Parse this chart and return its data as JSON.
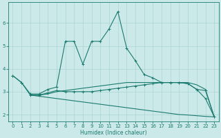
{
  "xlabel": "Humidex (Indice chaleur)",
  "bg_color": "#cce9e9",
  "grid_color": "#aad4d4",
  "line_color": "#1a7a6e",
  "xlim": [
    -0.5,
    23.5
  ],
  "ylim": [
    1.7,
    6.9
  ],
  "xticks": [
    0,
    1,
    2,
    3,
    4,
    5,
    6,
    7,
    8,
    9,
    10,
    11,
    12,
    13,
    14,
    15,
    16,
    17,
    18,
    19,
    20,
    21,
    22,
    23
  ],
  "yticks": [
    2,
    3,
    4,
    5,
    6
  ],
  "series": [
    {
      "x": [
        0,
        1,
        2,
        3,
        4,
        5,
        6,
        7,
        8,
        9,
        10,
        11,
        12,
        13,
        14,
        15,
        16,
        17,
        18,
        19,
        20,
        21,
        22,
        23
      ],
      "y": [
        3.7,
        3.4,
        2.9,
        2.9,
        3.1,
        3.2,
        5.2,
        5.2,
        4.2,
        5.2,
        5.2,
        5.75,
        6.5,
        4.9,
        4.35,
        3.75,
        3.6,
        3.4,
        3.4,
        3.4,
        3.35,
        3.1,
        2.7,
        1.9
      ],
      "marker": "+"
    },
    {
      "x": [
        0,
        1,
        2,
        3,
        4,
        5,
        6,
        7,
        8,
        9,
        10,
        11,
        12,
        13,
        14,
        15,
        16,
        17,
        18,
        19,
        20,
        21,
        22,
        23
      ],
      "y": [
        3.7,
        3.4,
        2.85,
        2.85,
        2.95,
        3.05,
        3.0,
        3.0,
        3.0,
        3.0,
        3.05,
        3.1,
        3.15,
        3.2,
        3.25,
        3.3,
        3.35,
        3.4,
        3.4,
        3.4,
        3.35,
        3.1,
        3.05,
        1.9
      ],
      "marker": "+"
    },
    {
      "x": [
        2,
        3,
        4,
        5,
        6,
        7,
        8,
        9,
        10,
        11,
        12,
        13,
        14,
        15,
        16,
        17,
        18,
        19,
        20,
        21,
        22,
        23
      ],
      "y": [
        2.85,
        2.85,
        2.9,
        3.0,
        3.05,
        3.1,
        3.15,
        3.2,
        3.25,
        3.3,
        3.35,
        3.4,
        3.4,
        3.4,
        3.4,
        3.4,
        3.4,
        3.4,
        3.4,
        3.3,
        3.1,
        1.9
      ],
      "marker": null
    },
    {
      "x": [
        2,
        3,
        4,
        5,
        6,
        7,
        8,
        9,
        10,
        11,
        12,
        13,
        14,
        15,
        16,
        17,
        18,
        19,
        20,
        21,
        22,
        23
      ],
      "y": [
        2.85,
        2.8,
        2.75,
        2.7,
        2.65,
        2.6,
        2.55,
        2.5,
        2.45,
        2.4,
        2.35,
        2.3,
        2.25,
        2.2,
        2.15,
        2.1,
        2.05,
        2.0,
        1.98,
        1.95,
        1.92,
        1.9
      ],
      "marker": null
    }
  ]
}
